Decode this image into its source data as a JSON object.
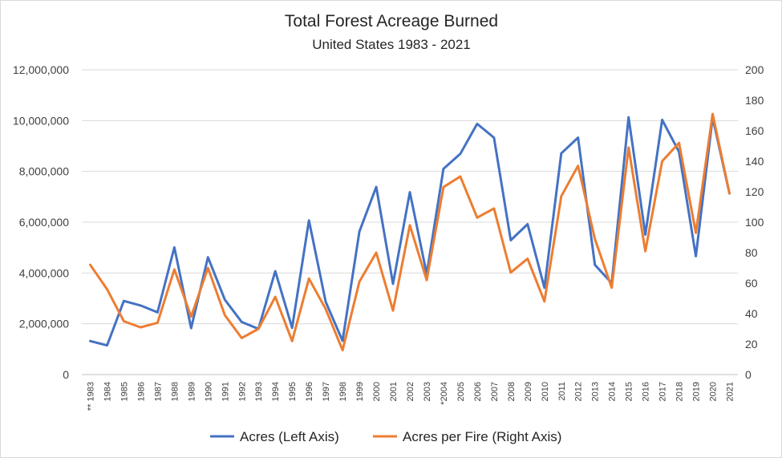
{
  "chart_data": {
    "type": "line",
    "title": "Total Forest Acreage Burned",
    "subtitle": "United States 1983 - 2021",
    "categories": [
      "** 1983",
      "1984",
      "1985",
      "1986",
      "1987",
      "1988",
      "1989",
      "1990",
      "1991",
      "1992",
      "1993",
      "1994",
      "1995",
      "1996",
      "1997",
      "1998",
      "1999",
      "2000",
      "2001",
      "2002",
      "2003",
      "*2004",
      "2005",
      "2006",
      "2007",
      "2008",
      "2009",
      "2010",
      "2011",
      "2012",
      "2013",
      "2014",
      "2015",
      "2016",
      "2017",
      "2018",
      "2019",
      "2020",
      "2021"
    ],
    "y_left": {
      "ylim": [
        0,
        12000000
      ],
      "ticks": [
        "0",
        "2,000,000",
        "4,000,000",
        "6,000,000",
        "8,000,000",
        "10,000,000",
        "12,000,000"
      ]
    },
    "y_right": {
      "ylim": [
        0,
        200
      ],
      "ticks": [
        "0",
        "20",
        "40",
        "60",
        "80",
        "100",
        "120",
        "140",
        "160",
        "180",
        "200"
      ]
    },
    "series": [
      {
        "name": "Acres (Left Axis)",
        "axis": "left",
        "color": "#4472c4",
        "values": [
          1320000,
          1150000,
          2900000,
          2720000,
          2450000,
          5010000,
          1830000,
          4620000,
          2950000,
          2070000,
          1800000,
          4070000,
          1840000,
          6070000,
          2860000,
          1330000,
          5630000,
          7390000,
          3570000,
          7180000,
          3960000,
          8100000,
          8690000,
          9870000,
          9330000,
          5290000,
          5920000,
          3420000,
          8710000,
          9330000,
          4320000,
          3600000,
          10130000,
          5510000,
          10030000,
          8770000,
          4660000,
          10120000,
          7130000
        ]
      },
      {
        "name": "Acres per Fire (Right Axis)",
        "axis": "right",
        "color": "#ed7d31",
        "values": [
          72,
          56,
          35,
          31,
          34,
          69,
          38,
          70,
          39,
          24,
          30,
          51,
          22,
          63,
          43,
          16,
          61,
          80,
          42,
          98,
          62,
          123,
          130,
          103,
          109,
          67,
          76,
          48,
          117,
          137,
          89,
          57,
          149,
          81,
          140,
          152,
          93,
          171,
          119
        ]
      }
    ],
    "legend": {
      "position": "bottom"
    },
    "grid": true
  }
}
